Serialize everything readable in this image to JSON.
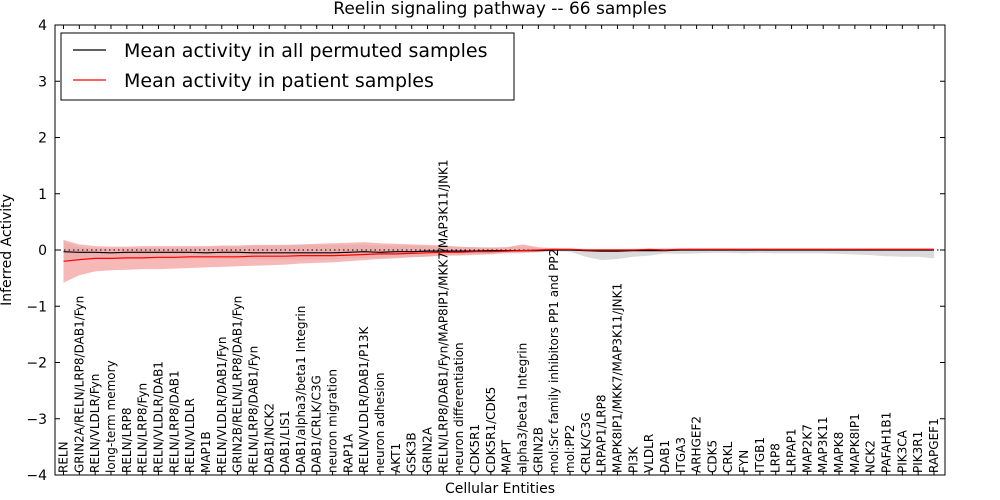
{
  "chart_data": {
    "type": "line",
    "title": "Reelin signaling pathway -- 66 samples",
    "xlabel": "Cellular Entities",
    "ylabel": "Inferred Activity",
    "ylim": [
      -4,
      4
    ],
    "yticks": [
      -4,
      -3,
      -2,
      -1,
      0,
      1,
      2,
      3,
      4
    ],
    "legend": {
      "placement": "top-left"
    },
    "categories": [
      "RELN",
      "GRIN2A/RELN/LRP8/DAB1/Fyn",
      "RELN/VLDLR/Fyn",
      "long-term memory",
      "RELN/LRP8",
      "RELN/LRP8/Fyn",
      "RELN/VLDLR/DAB1",
      "RELN/LRP8/DAB1",
      "RELN/VLDLR",
      "MAP1B",
      "RELN/VLDLR/DAB1/Fyn",
      "GRIN2B/RELN/LRP8/DAB1/Fyn",
      "RELN/LRP8/DAB1/Fyn",
      "DAB1/NCK2",
      "DAB1/LIS1",
      "DAB1/alpha3/beta1 Integrin",
      "DAB1/CRLK/C3G",
      "neuron migration",
      "RAP1A",
      "RELN/VLDLR/DAB1/P13K",
      "neuron adhesion",
      "AKT1",
      "GSK3B",
      "GRIN2A",
      "RELN/LRP8/DAB1/Fyn/MAP8IP1/MKK7/MAP3K11/JNK1",
      "neuron differentiation",
      "CDK5R1",
      "CDK5R1/CDK5",
      "MAPT",
      "alpha3/beta1 Integrin",
      "GRIN2B",
      "mol:Src family inhibitors PP1 and PP2",
      "mol:PP2",
      "CRLK/C3G",
      "LRPAP1/LRP8",
      "MAPK8IP1/MKK7/MAP3K11/JNK1",
      "PI3K",
      "VLDLR",
      "DAB1",
      "ITGA3",
      "ARHGEF2",
      "CDK5",
      "CRKL",
      "FYN",
      "ITGB1",
      "LRP8",
      "LRPAP1",
      "MAP2K7",
      "MAP3K11",
      "MAPK8",
      "MAPK8IP1",
      "NCK2",
      "PAFAH1B1",
      "PIK3CA",
      "PIK3R1",
      "RAPGEF1"
    ],
    "series": [
      {
        "name": "Mean activity in all permuted samples",
        "color": "#000000",
        "band_color": "#bbbbbb",
        "values": [
          -0.03,
          -0.04,
          -0.04,
          -0.05,
          -0.04,
          -0.04,
          -0.04,
          -0.04,
          -0.04,
          -0.05,
          -0.04,
          -0.04,
          -0.05,
          -0.05,
          -0.05,
          -0.05,
          -0.05,
          -0.05,
          -0.04,
          -0.03,
          -0.04,
          -0.03,
          -0.03,
          -0.02,
          -0.02,
          -0.02,
          -0.02,
          -0.01,
          -0.01,
          -0.01,
          -0.01,
          0.0,
          0.0,
          -0.01,
          -0.02,
          -0.02,
          -0.01,
          -0.01,
          -0.01,
          0.0,
          0.0,
          0.0,
          0.0,
          0.0,
          0.0,
          0.0,
          0.0,
          0.0,
          0.0,
          0.0,
          0.0,
          0.0,
          0.0,
          0.0,
          0.0,
          0.0
        ],
        "band_upper": [
          0.15,
          0.05,
          0.03,
          0.03,
          0.03,
          0.04,
          0.04,
          0.04,
          0.05,
          0.05,
          0.06,
          0.06,
          0.07,
          0.08,
          0.08,
          0.09,
          0.09,
          0.09,
          0.09,
          0.1,
          0.08,
          0.08,
          0.08,
          0.07,
          0.06,
          0.05,
          0.05,
          0.05,
          0.05,
          0.06,
          0.04,
          0.03,
          0.03,
          0.02,
          0.02,
          0.02,
          0.02,
          0.02,
          0.03,
          0.03,
          0.03,
          0.03,
          0.03,
          0.03,
          0.03,
          0.03,
          0.03,
          0.03,
          0.03,
          0.03,
          0.03,
          0.03,
          0.03,
          0.03,
          0.03,
          0.03
        ],
        "band_lower": [
          -0.2,
          -0.14,
          -0.14,
          -0.14,
          -0.14,
          -0.14,
          -0.15,
          -0.15,
          -0.15,
          -0.15,
          -0.16,
          -0.16,
          -0.16,
          -0.17,
          -0.17,
          -0.17,
          -0.17,
          -0.17,
          -0.14,
          -0.14,
          -0.14,
          -0.12,
          -0.12,
          -0.11,
          -0.1,
          -0.1,
          -0.09,
          -0.08,
          -0.06,
          -0.06,
          -0.04,
          -0.02,
          -0.03,
          -0.12,
          -0.18,
          -0.16,
          -0.12,
          -0.1,
          -0.06,
          -0.07,
          -0.06,
          -0.05,
          -0.05,
          -0.06,
          -0.05,
          -0.06,
          -0.06,
          -0.06,
          -0.06,
          -0.07,
          -0.08,
          -0.09,
          -0.11,
          -0.12,
          -0.12,
          -0.15
        ]
      },
      {
        "name": "Mean activity in patient samples",
        "color": "#ff0000",
        "band_color": "#f4a0a0",
        "values": [
          -0.2,
          -0.17,
          -0.15,
          -0.15,
          -0.14,
          -0.14,
          -0.13,
          -0.13,
          -0.12,
          -0.12,
          -0.12,
          -0.12,
          -0.11,
          -0.11,
          -0.11,
          -0.1,
          -0.1,
          -0.1,
          -0.09,
          -0.08,
          -0.07,
          -0.07,
          -0.06,
          -0.05,
          -0.04,
          -0.04,
          -0.03,
          -0.03,
          -0.02,
          -0.01,
          0.0,
          0.01,
          0.01,
          0.0,
          0.0,
          0.0,
          0.0,
          0.01,
          0.0,
          0.01,
          0.01,
          0.01,
          0.01,
          0.01,
          0.01,
          0.01,
          0.01,
          0.01,
          0.01,
          0.01,
          0.01,
          0.01,
          0.01,
          0.01,
          0.01,
          0.01
        ],
        "band_upper": [
          0.18,
          0.1,
          0.07,
          0.06,
          0.06,
          0.07,
          0.07,
          0.07,
          0.07,
          0.07,
          0.08,
          0.08,
          0.09,
          0.09,
          0.09,
          0.1,
          0.11,
          0.12,
          0.13,
          0.14,
          0.12,
          0.11,
          0.1,
          0.09,
          0.08,
          0.06,
          0.05,
          0.04,
          0.05,
          0.1,
          0.05,
          0.03,
          0.02,
          0.01,
          0.01,
          0.01,
          0.02,
          0.02,
          0.02,
          0.02,
          0.02,
          0.02,
          0.02,
          0.02,
          0.02,
          0.02,
          0.02,
          0.02,
          0.02,
          0.02,
          0.02,
          0.02,
          0.02,
          0.02,
          0.02,
          0.02
        ],
        "band_lower": [
          -0.58,
          -0.45,
          -0.38,
          -0.36,
          -0.35,
          -0.34,
          -0.34,
          -0.33,
          -0.32,
          -0.31,
          -0.3,
          -0.29,
          -0.28,
          -0.27,
          -0.26,
          -0.24,
          -0.23,
          -0.22,
          -0.2,
          -0.18,
          -0.16,
          -0.15,
          -0.13,
          -0.12,
          -0.1,
          -0.09,
          -0.08,
          -0.07,
          -0.05,
          -0.04,
          -0.03,
          -0.02,
          -0.01,
          -0.01,
          -0.01,
          -0.01,
          -0.01,
          -0.01,
          -0.01,
          0.0,
          0.0,
          0.0,
          0.0,
          0.0,
          0.0,
          0.0,
          0.0,
          0.0,
          0.0,
          0.0,
          0.0,
          0.0,
          0.0,
          0.0,
          0.0,
          0.0
        ]
      }
    ]
  }
}
